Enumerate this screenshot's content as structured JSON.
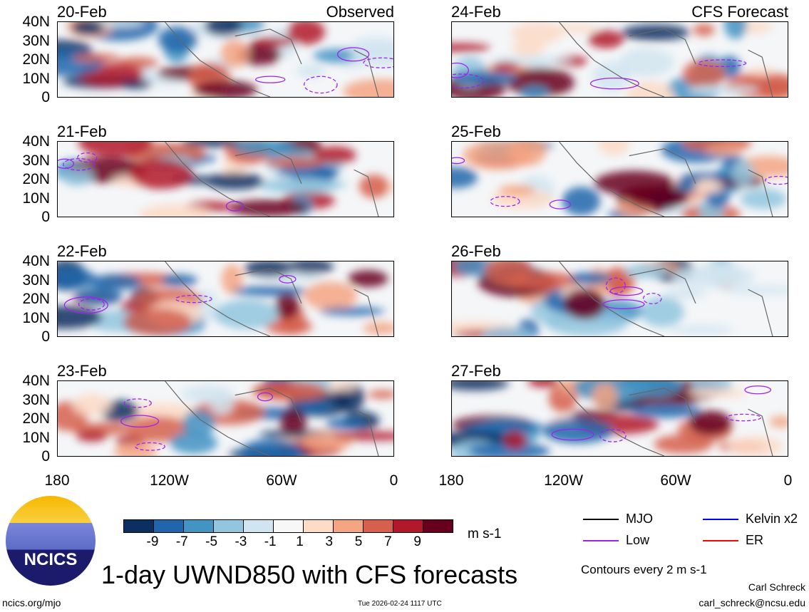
{
  "colors": [
    "#0b2f5f",
    "#2166ac",
    "#4393c3",
    "#92c5de",
    "#d1e5f0",
    "#f7f7f7",
    "#fddbc7",
    "#f4a582",
    "#d6604d",
    "#b2182b",
    "#67001f"
  ],
  "panels_left": [
    {
      "date": "20-Feb",
      "label": "Observed"
    },
    {
      "date": "21-Feb",
      "label": ""
    },
    {
      "date": "22-Feb",
      "label": ""
    },
    {
      "date": "23-Feb",
      "label": ""
    }
  ],
  "panels_right": [
    {
      "date": "24-Feb",
      "label": "CFS Forecast"
    },
    {
      "date": "25-Feb",
      "label": ""
    },
    {
      "date": "26-Feb",
      "label": ""
    },
    {
      "date": "27-Feb",
      "label": ""
    }
  ],
  "y_ticks": [
    "40N",
    "30N",
    "20N",
    "10N",
    "0"
  ],
  "x_ticks": [
    "180",
    "120W",
    "60W",
    "0"
  ],
  "colorbar": {
    "ticks": [
      "-9",
      "-7",
      "-5",
      "-3",
      "-1",
      "1",
      "3",
      "5",
      "7",
      "9"
    ],
    "units": "m s-1"
  },
  "legend": {
    "items": [
      {
        "label": "MJO",
        "color": "#000000"
      },
      {
        "label": "Kelvin x2",
        "color": "#0000ff"
      },
      {
        "label": "Low",
        "color": "#a020f0"
      },
      {
        "label": "ER",
        "color": "#ff0000"
      }
    ],
    "contours": "Contours every 2 m s-1"
  },
  "title": "1-day UWND850 with CFS forecasts",
  "logo_text": "NCICS",
  "footer": {
    "url": "ncics.org/mjo",
    "timestamp": "Tue 2026-02-24 1117 UTC",
    "author": "Carl Schreck",
    "email": "carl_schreck@ncsu.edu"
  }
}
